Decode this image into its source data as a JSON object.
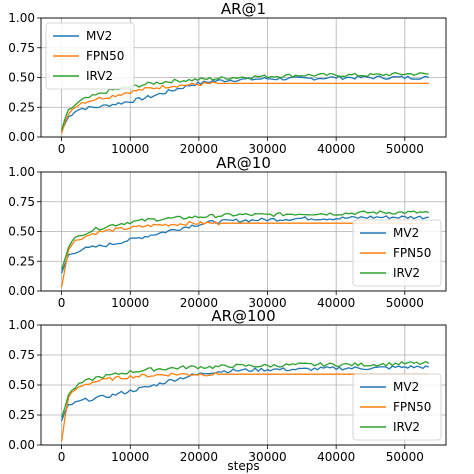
{
  "x_label": "steps",
  "series_style": [
    {
      "name": "MV2",
      "color": "#1f77b4"
    },
    {
      "name": "FPN50",
      "color": "#ff7f0e"
    },
    {
      "name": "IRV2",
      "color": "#2ca02c"
    }
  ],
  "chart_data": [
    {
      "type": "line",
      "title": "AR@1",
      "xlabel": "",
      "ylabel": "",
      "xlim": [
        -3000,
        56000
      ],
      "ylim": [
        0,
        1
      ],
      "xticks": [
        "0",
        "10000",
        "20000",
        "30000",
        "40000",
        "50000"
      ],
      "yticks": [
        "0.00",
        "0.25",
        "0.50",
        "0.75",
        "1.00"
      ],
      "grid": true,
      "legend": "top-left",
      "x": [
        0,
        1000,
        2000,
        3000,
        5000,
        7000,
        10000,
        13000,
        16000,
        19000,
        22000,
        25000,
        30000,
        35000,
        40000,
        45000,
        50000,
        53500
      ],
      "series": [
        {
          "name": "MV2",
          "values": [
            0.05,
            0.17,
            0.22,
            0.24,
            0.25,
            0.27,
            0.3,
            0.34,
            0.39,
            0.44,
            0.47,
            0.48,
            0.49,
            0.49,
            0.5,
            0.5,
            0.5,
            0.5
          ]
        },
        {
          "name": "FPN50",
          "values": [
            0.03,
            0.2,
            0.26,
            0.29,
            0.32,
            0.34,
            0.38,
            0.41,
            0.43,
            0.44,
            0.45,
            0.45,
            0.45,
            0.45,
            0.45,
            0.45,
            0.45,
            0.45
          ]
        },
        {
          "name": "IRV2",
          "values": [
            0.06,
            0.22,
            0.27,
            0.31,
            0.35,
            0.39,
            0.42,
            0.45,
            0.47,
            0.48,
            0.49,
            0.5,
            0.51,
            0.52,
            0.52,
            0.52,
            0.53,
            0.53
          ]
        }
      ]
    },
    {
      "type": "line",
      "title": "AR@10",
      "xlabel": "",
      "ylabel": "",
      "xlim": [
        -3000,
        56000
      ],
      "ylim": [
        0,
        1
      ],
      "xticks": [
        "0",
        "10000",
        "20000",
        "30000",
        "40000",
        "50000"
      ],
      "yticks": [
        "0.00",
        "0.25",
        "0.50",
        "0.75",
        "1.00"
      ],
      "grid": true,
      "legend": "bottom-right",
      "x": [
        0,
        1000,
        2000,
        3000,
        5000,
        7000,
        10000,
        13000,
        16000,
        19000,
        22000,
        25000,
        30000,
        35000,
        40000,
        45000,
        50000,
        53500
      ],
      "series": [
        {
          "name": "MV2",
          "values": [
            0.15,
            0.3,
            0.33,
            0.35,
            0.37,
            0.39,
            0.43,
            0.47,
            0.51,
            0.55,
            0.58,
            0.59,
            0.6,
            0.61,
            0.61,
            0.62,
            0.62,
            0.62
          ]
        },
        {
          "name": "FPN50",
          "values": [
            0.03,
            0.36,
            0.42,
            0.45,
            0.49,
            0.51,
            0.53,
            0.55,
            0.56,
            0.57,
            0.57,
            0.57,
            0.57,
            0.57,
            0.57,
            0.57,
            0.57,
            0.57
          ]
        },
        {
          "name": "IRV2",
          "values": [
            0.18,
            0.38,
            0.44,
            0.48,
            0.52,
            0.55,
            0.58,
            0.6,
            0.61,
            0.62,
            0.63,
            0.64,
            0.64,
            0.65,
            0.65,
            0.66,
            0.66,
            0.66
          ]
        }
      ]
    },
    {
      "type": "line",
      "title": "AR@100",
      "xlabel": "steps",
      "ylabel": "",
      "xlim": [
        -3000,
        56000
      ],
      "ylim": [
        0,
        1
      ],
      "xticks": [
        "0",
        "10000",
        "20000",
        "30000",
        "40000",
        "50000"
      ],
      "yticks": [
        "0.00",
        "0.25",
        "0.50",
        "0.75",
        "1.00"
      ],
      "grid": true,
      "legend": "bottom-right",
      "x": [
        0,
        1000,
        2000,
        3000,
        5000,
        7000,
        10000,
        13000,
        16000,
        19000,
        22000,
        25000,
        30000,
        35000,
        40000,
        45000,
        50000,
        53500
      ],
      "series": [
        {
          "name": "MV2",
          "values": [
            0.2,
            0.33,
            0.35,
            0.37,
            0.39,
            0.41,
            0.45,
            0.49,
            0.54,
            0.58,
            0.61,
            0.62,
            0.63,
            0.63,
            0.64,
            0.64,
            0.65,
            0.65
          ]
        },
        {
          "name": "FPN50",
          "values": [
            0.03,
            0.4,
            0.46,
            0.5,
            0.53,
            0.55,
            0.57,
            0.58,
            0.59,
            0.59,
            0.59,
            0.59,
            0.59,
            0.59,
            0.59,
            0.59,
            0.59,
            0.59
          ]
        },
        {
          "name": "IRV2",
          "values": [
            0.23,
            0.42,
            0.48,
            0.52,
            0.56,
            0.58,
            0.61,
            0.63,
            0.64,
            0.65,
            0.65,
            0.66,
            0.66,
            0.67,
            0.67,
            0.67,
            0.68,
            0.68
          ]
        }
      ]
    }
  ]
}
